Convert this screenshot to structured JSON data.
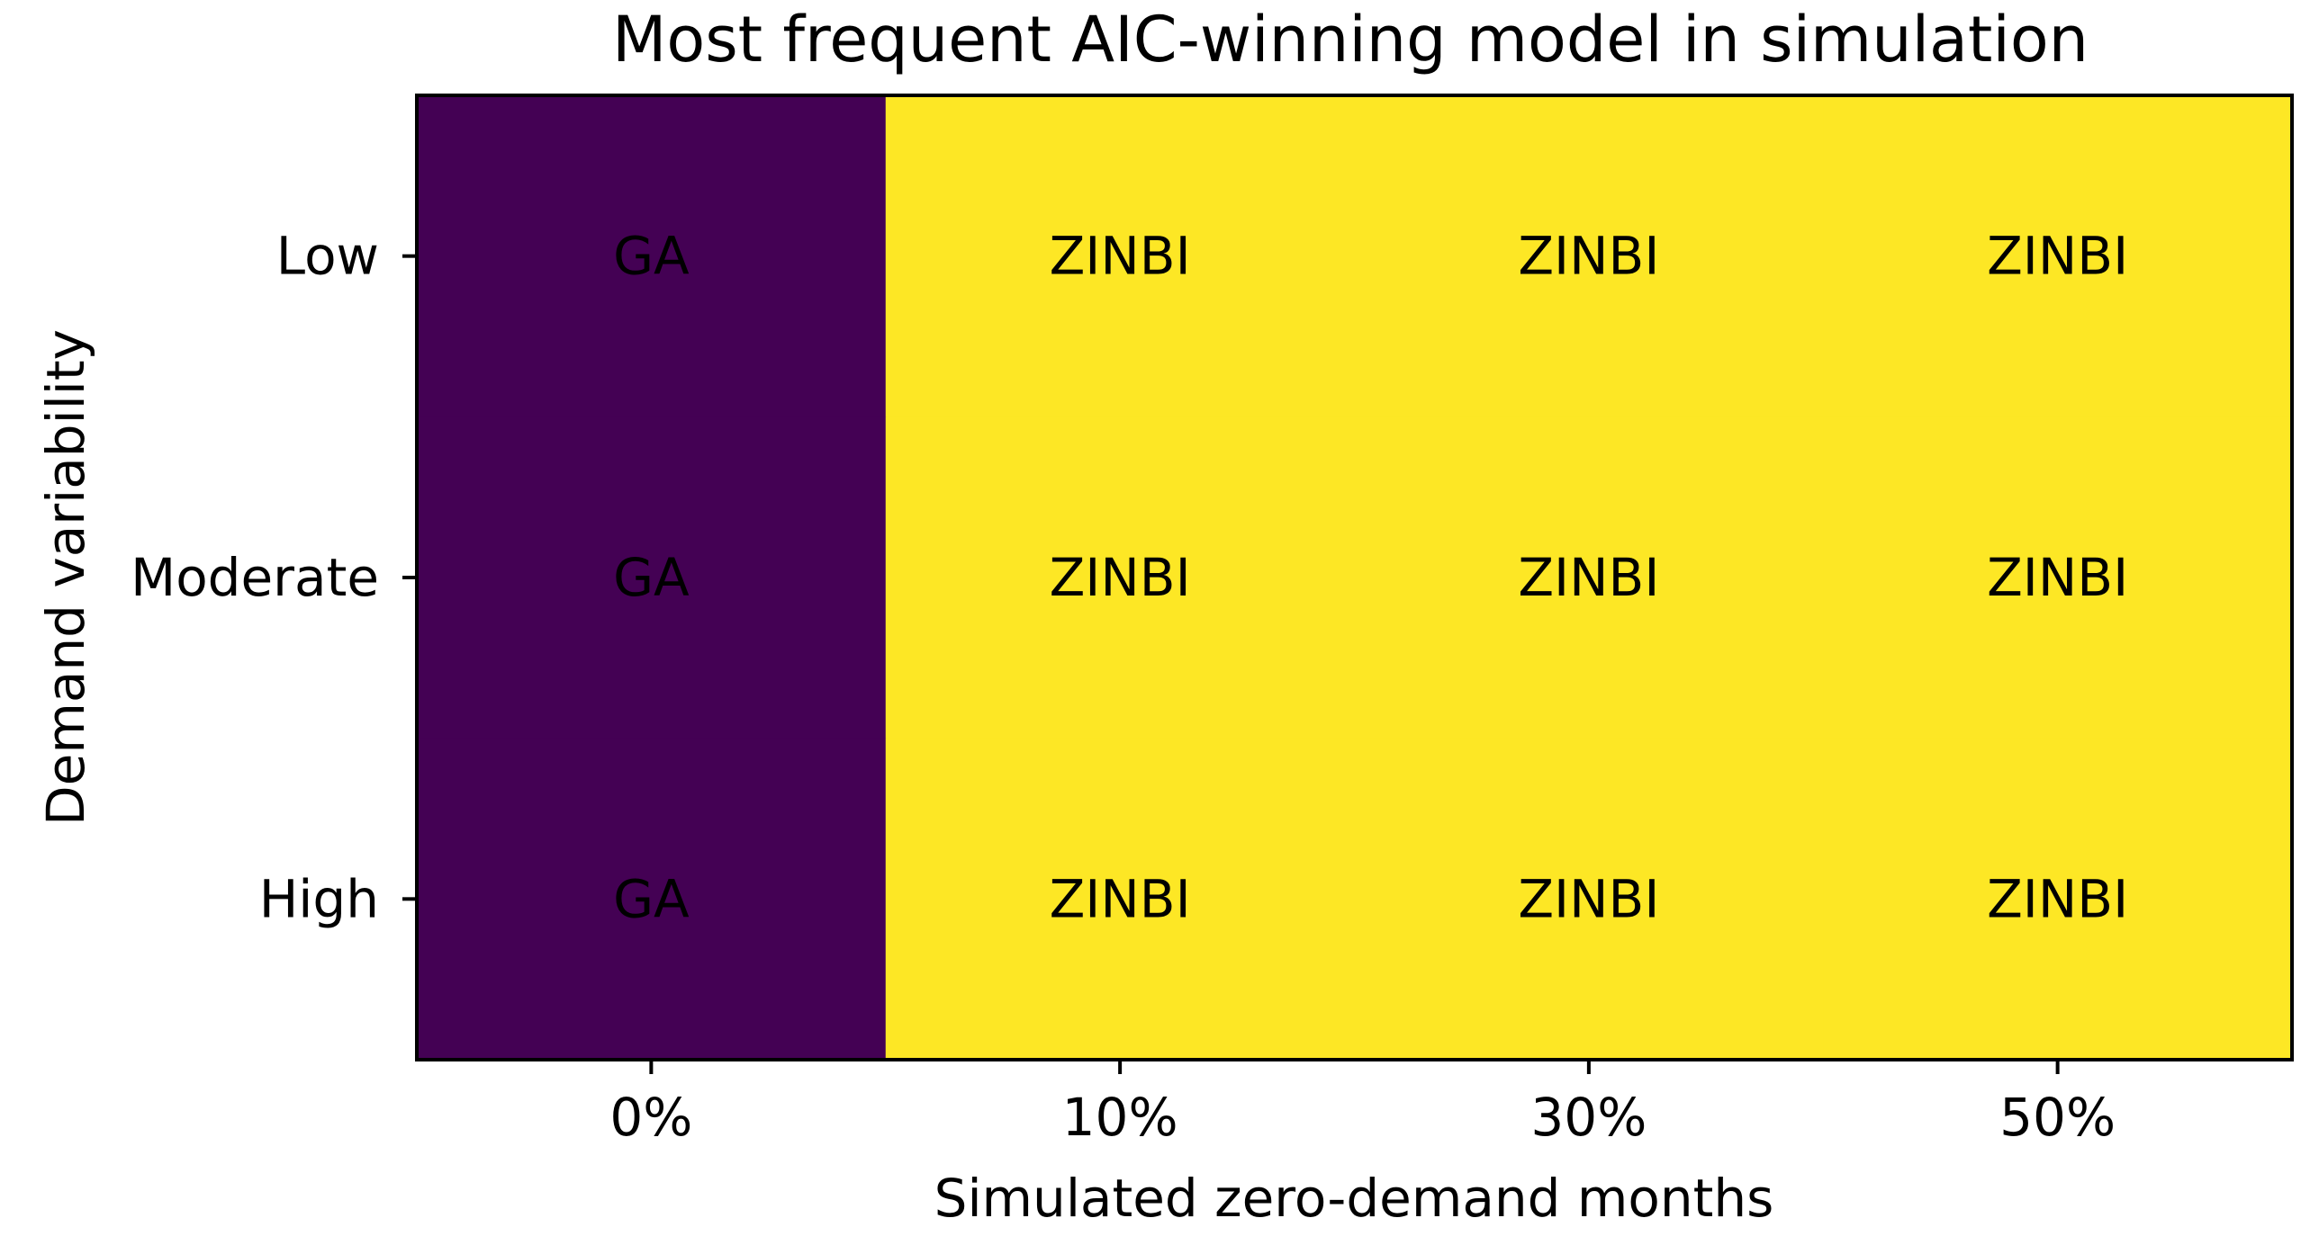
{
  "chart_data": {
    "type": "heatmap",
    "title": "Most frequent AIC-winning model in simulation",
    "xlabel": "Simulated zero-demand months",
    "ylabel": "Demand variability",
    "x_categories": [
      "0%",
      "10%",
      "30%",
      "50%"
    ],
    "y_categories": [
      "Low",
      "Moderate",
      "High"
    ],
    "cells": [
      [
        "GA",
        "ZINBI",
        "ZINBI",
        "ZINBI"
      ],
      [
        "GA",
        "ZINBI",
        "ZINBI",
        "ZINBI"
      ],
      [
        "GA",
        "ZINBI",
        "ZINBI",
        "ZINBI"
      ]
    ],
    "category_colors": {
      "GA": "#440154",
      "ZINBI": "#fde725"
    },
    "grid": false,
    "legend": "none"
  }
}
